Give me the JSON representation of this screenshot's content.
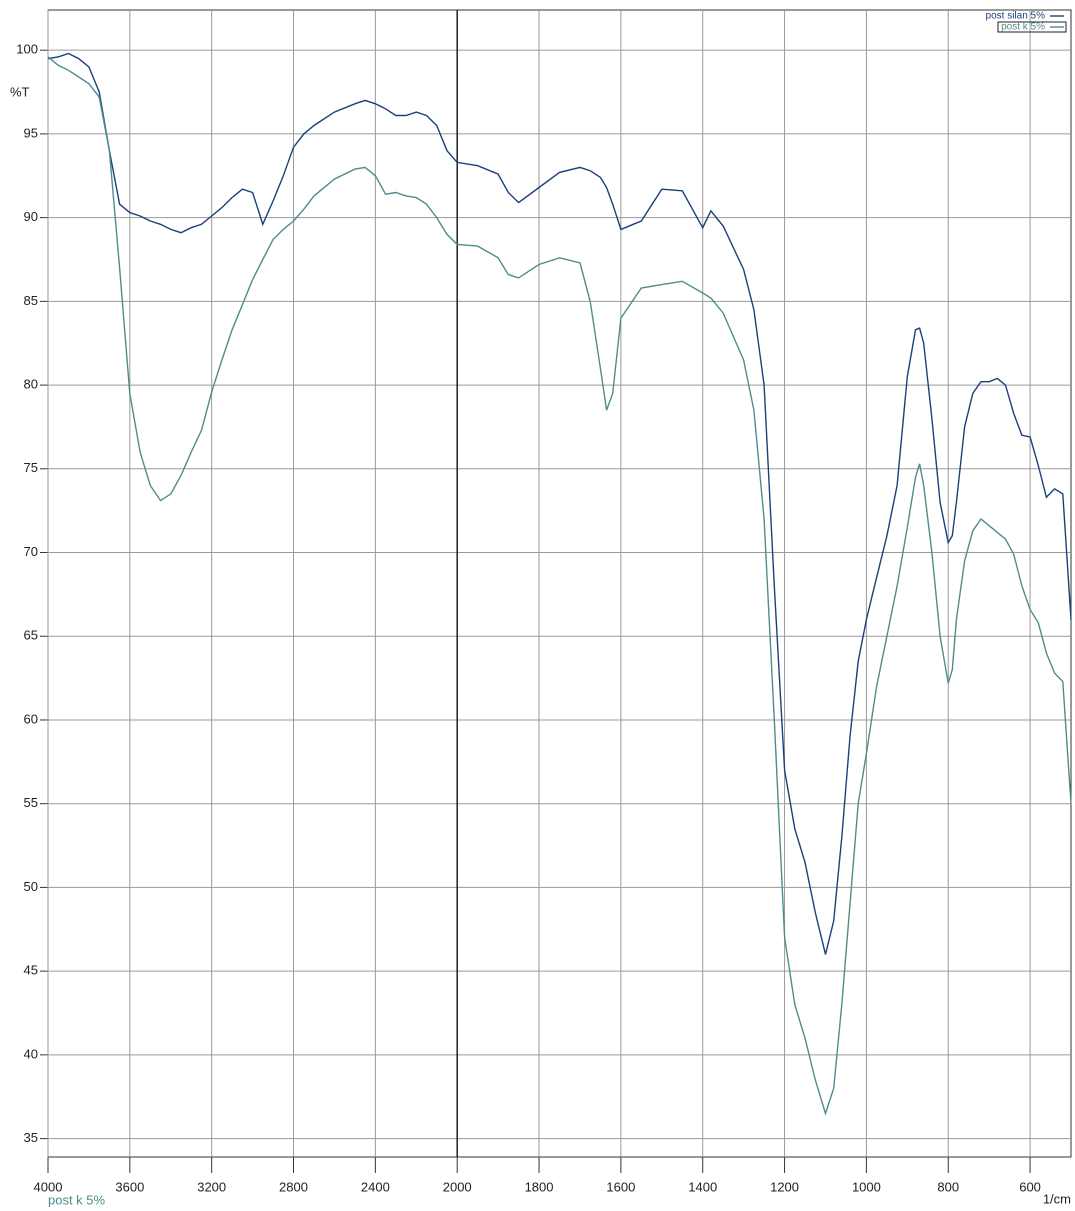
{
  "chart_data": {
    "type": "line",
    "y_label": "%T",
    "x_label": "1/cm",
    "footer_label": "post k 5%",
    "xlim": [
      4000,
      500
    ],
    "ylim": [
      33.9,
      102.4
    ],
    "xscale_break": {
      "at": 2000,
      "factor": 2
    },
    "xticks": [
      4000,
      3600,
      3200,
      2800,
      2400,
      2000,
      1800,
      1600,
      1400,
      1200,
      1000,
      800,
      600
    ],
    "yticks": [
      35,
      40,
      45,
      50,
      55,
      60,
      65,
      70,
      75,
      80,
      85,
      90,
      95,
      100
    ],
    "grid": true,
    "legend": "top-right",
    "x": [
      4000,
      3950,
      3900,
      3850,
      3800,
      3750,
      3700,
      3650,
      3600,
      3550,
      3500,
      3450,
      3400,
      3350,
      3300,
      3250,
      3200,
      3150,
      3100,
      3050,
      3000,
      2950,
      2900,
      2850,
      2800,
      2750,
      2700,
      2600,
      2500,
      2450,
      2400,
      2350,
      2300,
      2250,
      2200,
      2150,
      2100,
      2050,
      2000,
      1950,
      1900,
      1875,
      1850,
      1800,
      1750,
      1700,
      1675,
      1650,
      1635,
      1620,
      1600,
      1550,
      1500,
      1450,
      1400,
      1380,
      1350,
      1300,
      1275,
      1250,
      1225,
      1200,
      1175,
      1150,
      1125,
      1100,
      1080,
      1060,
      1040,
      1020,
      1000,
      975,
      950,
      925,
      900,
      880,
      870,
      860,
      840,
      820,
      800,
      790,
      780,
      760,
      740,
      720,
      700,
      680,
      660,
      640,
      620,
      600,
      580,
      560,
      540,
      520,
      500
    ],
    "series": [
      {
        "name": "post silan 5%",
        "color": "#1b4079",
        "values": [
          99.5,
          99.6,
          99.8,
          99.5,
          99,
          97.5,
          94,
          90.8,
          90.3,
          90.1,
          89.8,
          89.6,
          89.3,
          89.1,
          89.4,
          89.6,
          90.1,
          90.6,
          91.2,
          91.7,
          91.5,
          89.6,
          91,
          92.5,
          94.2,
          95,
          95.5,
          96.3,
          96.8,
          97,
          96.8,
          96.5,
          96.1,
          96.1,
          96.3,
          96.1,
          95.5,
          94,
          93.3,
          93.1,
          92.6,
          91.5,
          90.9,
          91.8,
          92.7,
          93,
          92.8,
          92.4,
          91.8,
          90.8,
          89.3,
          89.8,
          91.7,
          91.6,
          89.4,
          90.4,
          89.5,
          86.9,
          84.5,
          80,
          68,
          57,
          53.5,
          51.5,
          48.5,
          46,
          48,
          53,
          59,
          63.5,
          66,
          68.5,
          71,
          74,
          80.5,
          83.3,
          83.4,
          82.5,
          78,
          73,
          70.6,
          71,
          73,
          77.5,
          79.5,
          80.2,
          80.2,
          80.4,
          80,
          78.3,
          77,
          76.9,
          75.2,
          73.3,
          73.8,
          73.5,
          66
        ]
      },
      {
        "name": "post k 5%",
        "color": "#4f8c8c",
        "values": [
          99.6,
          99.1,
          98.8,
          98.4,
          98,
          97.2,
          94,
          87,
          79.5,
          76,
          74,
          73.1,
          73.5,
          74.6,
          76,
          77.3,
          79.6,
          81.5,
          83.3,
          84.8,
          86.3,
          87.5,
          88.7,
          89.3,
          89.8,
          90.5,
          91.3,
          92.3,
          92.9,
          93,
          92.5,
          91.4,
          91.5,
          91.3,
          91.2,
          90.8,
          90,
          89,
          88.4,
          88.3,
          87.6,
          86.6,
          86.4,
          87.2,
          87.6,
          87.3,
          85,
          81,
          78.5,
          79.5,
          84,
          85.8,
          86,
          86.2,
          85.5,
          85.2,
          84.3,
          81.5,
          78.5,
          72,
          60,
          47,
          43,
          41,
          38.5,
          36.5,
          38,
          43,
          49,
          55,
          58,
          62,
          65,
          68,
          71.5,
          74.5,
          75.3,
          74,
          70,
          65,
          62.2,
          63,
          66,
          69.5,
          71.3,
          72,
          71.6,
          71.2,
          70.8,
          69.9,
          68,
          66.6,
          65.8,
          64,
          62.8,
          62.3,
          55
        ]
      }
    ]
  }
}
